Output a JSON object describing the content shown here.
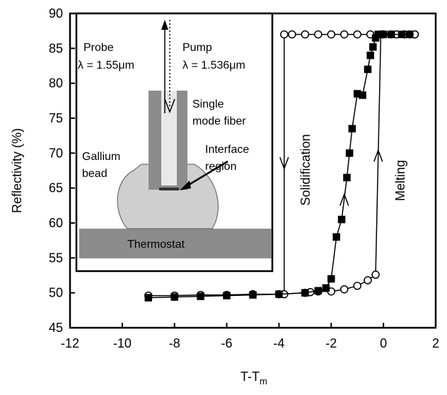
{
  "chart_data": {
    "type": "line",
    "ylabel": "Reflectivity  (%)",
    "xlabel": {
      "main": "T-T",
      "sub": "m"
    },
    "xlim": [
      -12,
      2
    ],
    "xticks": [
      -12,
      -10,
      -8,
      -6,
      -4,
      -2,
      0,
      2
    ],
    "ylim": [
      45,
      90
    ],
    "yticks": [
      45,
      50,
      55,
      60,
      65,
      70,
      75,
      80,
      85,
      90
    ],
    "annotations": [
      "Solidification",
      "Melting"
    ],
    "series": [
      {
        "color": "#000000",
        "marker": "circle",
        "fill": "none",
        "x": [
          -9,
          -8,
          -7,
          -6,
          -5,
          -4,
          -3,
          -2.8,
          -2.5,
          -2,
          -1.5,
          -1,
          -0.6,
          -0.3,
          -0.1,
          0.3,
          0.8,
          1.2
        ],
        "values": [
          49.6,
          49.6,
          49.7,
          49.7,
          49.8,
          49.8,
          50,
          50.1,
          50.2,
          50.2,
          50.5,
          51,
          51.8,
          52.6,
          87,
          87,
          87,
          87
        ]
      },
      {
        "color": "#000000",
        "marker": "circle",
        "fill": "none",
        "x": [
          1.2,
          1,
          0.5,
          0,
          -0.5,
          -1,
          -1.5,
          -2,
          -2.5,
          -3,
          -3.5,
          -3.8,
          -3.8
        ],
        "values": [
          87,
          87,
          87,
          87,
          87,
          87,
          87,
          87,
          87,
          87,
          87,
          87,
          49.8
        ]
      },
      {
        "color": "#000000",
        "marker": "square",
        "fill": "#000000",
        "x": [
          -9,
          -8,
          -7,
          -6,
          -5,
          -4,
          -3,
          -2.5,
          -2.2,
          -2,
          -1.8,
          -1.6,
          -1.4,
          -1.3,
          -1.2,
          -1,
          -0.8,
          -0.6,
          -0.5,
          -0.4,
          -0.3,
          -0.2,
          0,
          0.3,
          0.7,
          1
        ],
        "values": [
          49.3,
          49.4,
          49.5,
          49.6,
          49.7,
          49.8,
          50,
          50.3,
          50.7,
          52,
          58,
          60.5,
          66.5,
          70,
          73.5,
          78.5,
          78.3,
          82,
          84,
          85.2,
          86.5,
          87,
          87,
          87,
          87,
          87
        ]
      }
    ]
  },
  "inset": {
    "probe": {
      "label": "Probe",
      "wavelength": "λ = 1.55μm"
    },
    "pump": {
      "label": "Pump",
      "wavelength": "λ = 1.536μm"
    },
    "fiber": [
      "Single",
      "mode fiber"
    ],
    "bead": [
      "Gallium",
      "bead"
    ],
    "interface": [
      "Interface",
      "region"
    ],
    "thermostat": "Thermostat"
  }
}
